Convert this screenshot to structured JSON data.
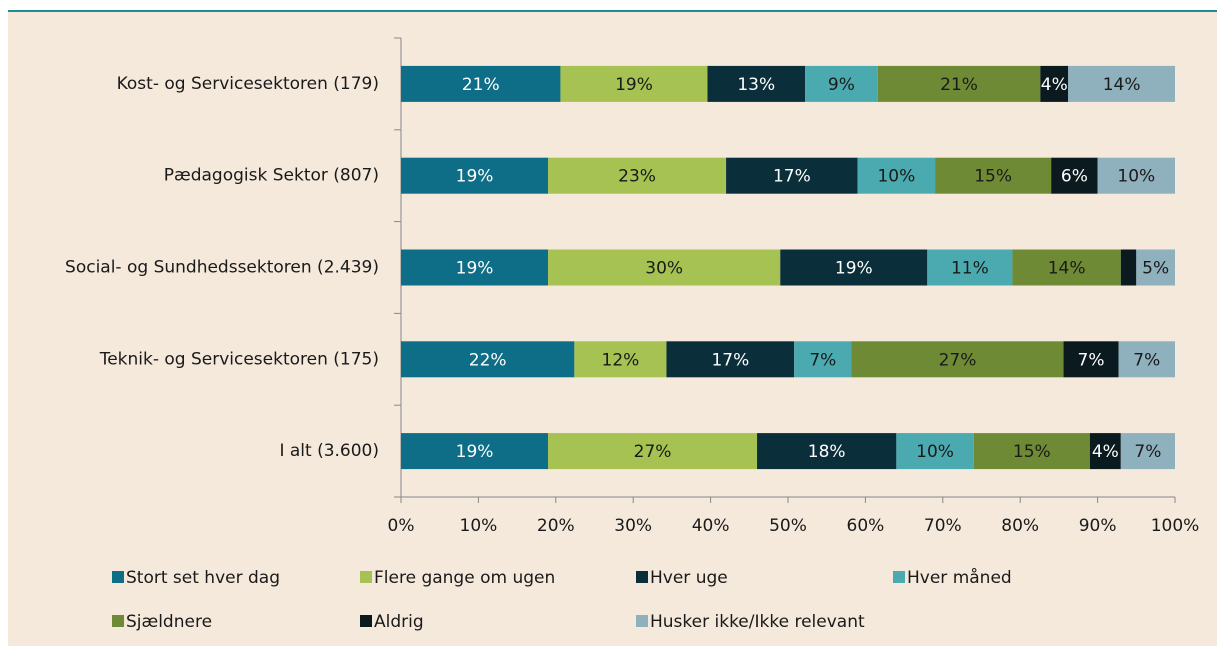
{
  "chart_data": {
    "type": "stacked_barh",
    "categories": [
      "Kost- og Servicesektoren (179)",
      "Pædagogisk Sektor (807)",
      "Social- og Sundhedssektoren (2.439)",
      "Teknik- og Servicesektoren (175)",
      "I alt (3.600)"
    ],
    "series": [
      {
        "name": "Stort set hver dag",
        "color": "#0e6e87",
        "values": [
          20.6,
          19,
          19,
          22.4,
          19
        ],
        "value_labels": [
          "21%",
          "19%",
          "19%",
          "22%",
          "19%"
        ]
      },
      {
        "name": "Flere gange om ugen",
        "color": "#a5c252",
        "values": [
          19,
          23,
          30,
          11.9,
          27
        ],
        "value_labels": [
          "19%",
          "23%",
          "30%",
          "12%",
          "27%"
        ]
      },
      {
        "name": "Hver uge",
        "color": "#0b2f3a",
        "values": [
          12.6,
          17,
          19,
          16.5,
          18
        ],
        "value_labels": [
          "13%",
          "17%",
          "19%",
          "17%",
          "18%"
        ]
      },
      {
        "name": "Hver måned",
        "color": "#4aaab0",
        "values": [
          9.4,
          10,
          11,
          7.4,
          10
        ],
        "value_labels": [
          "9%",
          "10%",
          "11%",
          "7%",
          "10%"
        ]
      },
      {
        "name": "Sjældnere",
        "color": "#6f8a35",
        "values": [
          21,
          15,
          14,
          27.4,
          15
        ],
        "value_labels": [
          "21%",
          "15%",
          "14%",
          "27%",
          "15%"
        ]
      },
      {
        "name": "Aldrig",
        "color": "#0a1a1f",
        "values": [
          3.6,
          6,
          2,
          7.1,
          4
        ],
        "value_labels": [
          "4%",
          "6%",
          null,
          "7%",
          "4%"
        ]
      },
      {
        "name": "Husker ikke/Ikke relevant",
        "color": "#8fb0bd",
        "values": [
          13.8,
          10,
          5,
          7.3,
          7
        ],
        "value_labels": [
          "14%",
          "10%",
          "5%",
          "7%",
          "7%"
        ]
      }
    ],
    "xlim": [
      0,
      100
    ],
    "xticks": [
      {
        "value": 0,
        "label": "0%"
      },
      {
        "value": 10,
        "label": "10%"
      },
      {
        "value": 20,
        "label": "20%"
      },
      {
        "value": 30,
        "label": "30%"
      },
      {
        "value": 40,
        "label": "40%"
      },
      {
        "value": 50,
        "label": "50%"
      },
      {
        "value": 60,
        "label": "60%"
      },
      {
        "value": 70,
        "label": "70%"
      },
      {
        "value": 80,
        "label": "80%"
      },
      {
        "value": 90,
        "label": "90%"
      },
      {
        "value": 100,
        "label": "100%"
      }
    ]
  }
}
